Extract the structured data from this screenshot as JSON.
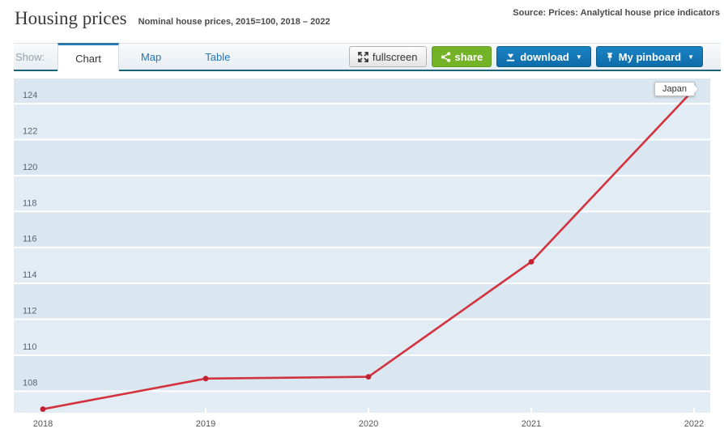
{
  "header": {
    "title": "Housing prices",
    "subtitle": "Nominal house prices, 2015=100, 2018 – 2022",
    "source": "Source: Prices: Analytical house price indicators"
  },
  "tabs": {
    "show_label": "Show:",
    "items": [
      {
        "label": "Chart",
        "active": true
      },
      {
        "label": "Map",
        "active": false
      },
      {
        "label": "Table",
        "active": false
      }
    ]
  },
  "toolbar": {
    "fullscreen_label": "fullscreen",
    "share_label": "share",
    "download_label": "download",
    "pinboard_label": "My pinboard",
    "caret": "▼"
  },
  "colors": {
    "line_red": "#d2333f",
    "marker_red": "#c2222f",
    "band_dark": "#dbe7f0",
    "band_light": "#e2ecf4",
    "grid_white": "#ffffff",
    "axis_label": "#5a6572",
    "accent_blue": "#1177b5",
    "share_green": "#74b227",
    "tab_underline": "#1c6577"
  },
  "chart_data": {
    "type": "line",
    "title": "Housing prices — Nominal house prices, 2015=100, 2018 – 2022",
    "x": [
      2018,
      2019,
      2020,
      2021,
      2022
    ],
    "series": [
      {
        "name": "Japan",
        "values": [
          107.0,
          108.7,
          108.8,
          115.2,
          124.8
        ]
      }
    ],
    "ylim": [
      106.8,
      125.4
    ],
    "yticks": [
      108,
      110,
      112,
      114,
      116,
      118,
      120,
      122,
      124
    ],
    "xlabel": "",
    "ylabel": "",
    "grid": "horizontal",
    "legend": "label-on-last-point",
    "annotation": "Japan"
  }
}
